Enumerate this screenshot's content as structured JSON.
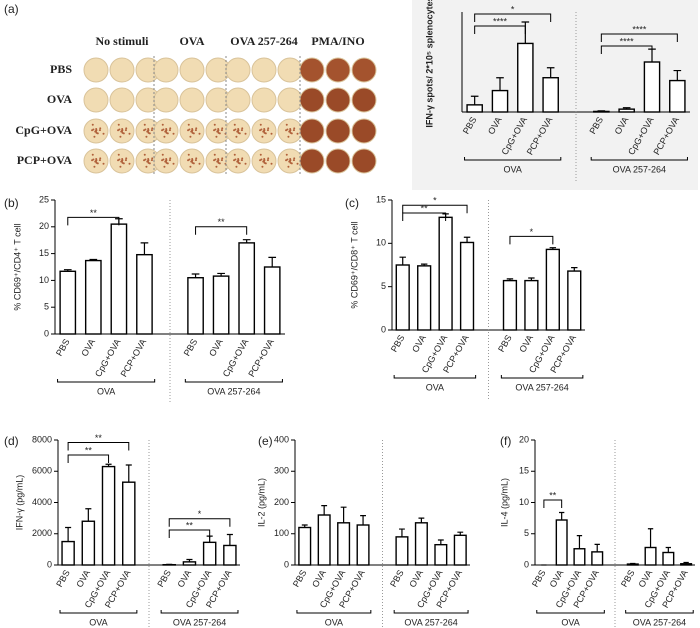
{
  "image_panel": {
    "panel": "(a)",
    "columns": [
      "No stimuli",
      "OVA",
      "OVA 257-264",
      "PMA/INO"
    ],
    "rows": [
      "PBS",
      "OVA",
      "CpG+OVA",
      "PCP+OVA"
    ]
  },
  "chart_data": [
    {
      "type": "bar",
      "ylabel": "IFN-γ spots/ 2*10⁵ splenocytes",
      "categories": [
        "PBS",
        "OVA",
        "CpG+OVA",
        "PCP+OVA",
        "PBS",
        "OVA",
        "CpG+OVA",
        "PCP+OVA"
      ],
      "groups": [
        "OVA",
        "OVA 257-264"
      ],
      "values": [
        25,
        75,
        240,
        120,
        2,
        10,
        175,
        110
      ],
      "errors": [
        30,
        45,
        75,
        35,
        2,
        5,
        45,
        35
      ],
      "color": "#ffffff",
      "ylim": [
        0,
        350
      ],
      "annotations": [
        "*",
        "****",
        "****",
        "****"
      ]
    },
    {
      "type": "bar",
      "panel": "(b)",
      "ylabel": "% CD69⁺/CD4⁺ T cell",
      "categories": [
        "PBS",
        "OVA",
        "CpG+OVA",
        "PCP+OVA",
        "PBS",
        "OVA",
        "CpG+OVA",
        "PCP+OVA"
      ],
      "groups": [
        "OVA",
        "OVA 257-264"
      ],
      "values": [
        11.7,
        13.7,
        20.5,
        14.8,
        10.5,
        10.8,
        17,
        12.5
      ],
      "errors": [
        0.3,
        0.2,
        1,
        2.2,
        0.7,
        0.5,
        0.6,
        1.8
      ],
      "color": "#ffffff",
      "ylim": [
        0,
        25
      ],
      "yticks": [
        0,
        5,
        10,
        15,
        20,
        25
      ],
      "annotations": [
        "**",
        "**"
      ]
    },
    {
      "type": "bar",
      "panel": "(c)",
      "ylabel": "% CD69⁺/CD8⁺ T cell",
      "categories": [
        "PBS",
        "OVA",
        "CpG+OVA",
        "PCP+OVA",
        "PBS",
        "OVA",
        "CpG+OVA",
        "PCP+OVA"
      ],
      "groups": [
        "OVA",
        "OVA 257-264"
      ],
      "values": [
        7.5,
        7.4,
        13,
        10.1,
        5.7,
        5.7,
        9.3,
        6.8
      ],
      "errors": [
        0.9,
        0.2,
        0.4,
        0.6,
        0.2,
        0.3,
        0.2,
        0.4
      ],
      "color": "#ffffff",
      "ylim": [
        0,
        15
      ],
      "yticks": [
        0,
        5,
        10,
        15
      ],
      "annotations": [
        "*",
        "**",
        "*"
      ]
    },
    {
      "type": "bar",
      "panel": "(d)",
      "ylabel": "IFN-γ (pg/mL)",
      "categories": [
        "PBS",
        "OVA",
        "CpG+OVA",
        "PCP+OVA",
        "PBS",
        "OVA",
        "CpG+OVA",
        "PCP+OVA"
      ],
      "groups": [
        "OVA",
        "OVA 257-264"
      ],
      "values": [
        1500,
        2800,
        6300,
        5300,
        20,
        200,
        1450,
        1250
      ],
      "errors": [
        900,
        800,
        150,
        1100,
        20,
        150,
        400,
        700
      ],
      "color": "#ffffff",
      "ylim": [
        0,
        8000
      ],
      "yticks": [
        0,
        2000,
        4000,
        6000,
        8000
      ],
      "annotations": [
        "**",
        "**",
        "*",
        "**"
      ]
    },
    {
      "type": "bar",
      "panel": "(e)",
      "ylabel": "IL-2 (pg/mL)",
      "categories": [
        "PBS",
        "OVA",
        "CpG+OVA",
        "PCP+OVA",
        "PBS",
        "OVA",
        "CpG+OVA",
        "PCP+OVA"
      ],
      "groups": [
        "OVA",
        "OVA 257-264"
      ],
      "values": [
        120,
        160,
        135,
        128,
        90,
        135,
        65,
        95
      ],
      "errors": [
        8,
        30,
        50,
        30,
        25,
        15,
        15,
        10
      ],
      "color": "#ffffff",
      "ylim": [
        0,
        400
      ],
      "yticks": [
        0,
        100,
        200,
        300,
        400
      ],
      "annotations": []
    },
    {
      "type": "bar",
      "panel": "(f)",
      "ylabel": "IL-4 (pg/mL)",
      "categories": [
        "PBS",
        "OVA",
        "CpG+OVA",
        "PCP+OVA",
        "PBS",
        "OVA",
        "CpG+OVA",
        "PCP+OVA"
      ],
      "groups": [
        "OVA",
        "OVA 257-264"
      ],
      "values": [
        0,
        7.2,
        2.6,
        2.1,
        0.15,
        2.8,
        2,
        0.2
      ],
      "errors": [
        0,
        1.2,
        2.1,
        1.2,
        0.1,
        3,
        0.8,
        0.2
      ],
      "color": "#ffffff",
      "ylim": [
        0,
        20
      ],
      "yticks": [
        0,
        5,
        10,
        15,
        20
      ],
      "annotations": [
        "**"
      ]
    }
  ]
}
